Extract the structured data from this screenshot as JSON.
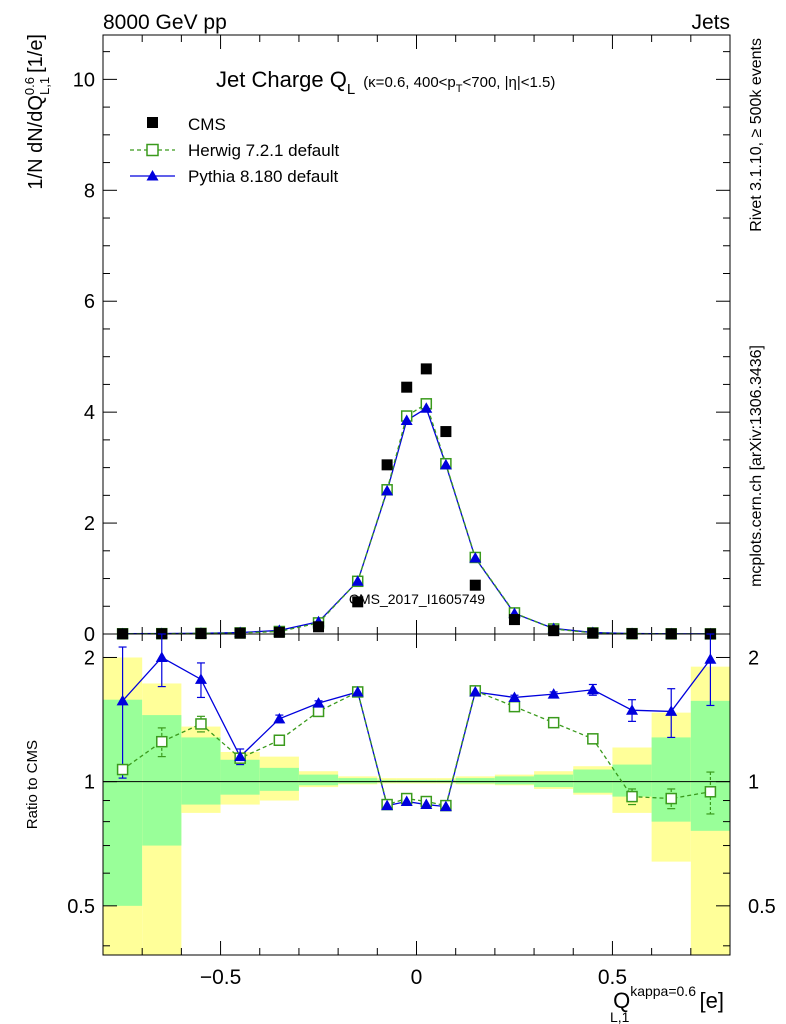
{
  "header": {
    "left": "8000 GeV pp",
    "right": "Jets"
  },
  "side_text": {
    "rivet": "Rivet 3.1.10, ≥ 500k events",
    "mcplots": "mcplots.cern.ch [arXiv:1306.3436]"
  },
  "watermark": "CMS_2017_I1605749",
  "title": {
    "main": "Jet Charge Q",
    "main_sub": "L",
    "cond_a": "(κ=0.6, 400<p",
    "cond_sub": "T",
    "cond_b": "<700, |η|<1.5)"
  },
  "axes": {
    "ylabel_main": "1/N dN/dQ",
    "ylabel_main_sup": "0.6",
    "ylabel_main_sub": "L,1",
    "ylabel_main_unit": "[1/e]",
    "ylabel_ratio": "Ratio to CMS",
    "xlabel_base": "Q",
    "xlabel_sup": "kappa=0.6",
    "xlabel_sub": "L,1",
    "xlabel_unit": "[e]"
  },
  "legend": {
    "items": [
      {
        "label": "CMS"
      },
      {
        "label": "Herwig 7.2.1 default"
      },
      {
        "label": "Pythia 8.180 default"
      }
    ]
  },
  "colors": {
    "cms": "#000000",
    "herwig": "#3a9a1c",
    "pythia": "#0000dd",
    "band_inner": "#99ff99",
    "band_outer": "#ffff99"
  },
  "chart_data": [
    {
      "type": "scatter",
      "panel": "main",
      "xlim": [
        -0.8,
        0.8
      ],
      "ylim": [
        0,
        10.8
      ],
      "yticks": [
        0,
        2,
        4,
        6,
        8,
        10
      ],
      "ytick_labels": [
        "0",
        "2",
        "4",
        "6",
        "8",
        "10"
      ],
      "x": [
        -0.75,
        -0.65,
        -0.55,
        -0.45,
        -0.35,
        -0.25,
        -0.15,
        -0.075,
        -0.025,
        0.025,
        0.075,
        0.15,
        0.25,
        0.35,
        0.45,
        0.55,
        0.65,
        0.75
      ],
      "series": [
        {
          "name": "CMS",
          "values": [
            0.003,
            0.005,
            0.008,
            0.015,
            0.03,
            0.13,
            0.58,
            3.05,
            4.45,
            4.78,
            3.65,
            0.88,
            0.26,
            0.06,
            0.015,
            0.006,
            0.003,
            0.002
          ]
        },
        {
          "name": "Herwig 7.2.1 default",
          "values": [
            0.004,
            0.006,
            0.011,
            0.02,
            0.045,
            0.2,
            0.95,
            2.6,
            3.93,
            4.15,
            3.07,
            1.38,
            0.38,
            0.09,
            0.02,
            0.006,
            0.003,
            0.002
          ]
        },
        {
          "name": "Pythia 8.180 default",
          "values": [
            0.005,
            0.009,
            0.014,
            0.026,
            0.065,
            0.22,
            0.95,
            2.58,
            3.85,
            4.07,
            3.05,
            1.37,
            0.37,
            0.1,
            0.026,
            0.009,
            0.005,
            0.004
          ]
        }
      ]
    },
    {
      "type": "line",
      "panel": "ratio",
      "xlim": [
        -0.8,
        0.8
      ],
      "ylim": [
        0.38,
        2.28
      ],
      "yticks": [
        0.5,
        1,
        2
      ],
      "ytick_labels": [
        "0.5",
        "1",
        "2"
      ],
      "xticks": [
        -0.5,
        0,
        0.5
      ],
      "xtick_labels": [
        "−0.5",
        "0",
        "0.5"
      ],
      "x": [
        -0.75,
        -0.65,
        -0.55,
        -0.45,
        -0.35,
        -0.25,
        -0.15,
        -0.075,
        -0.025,
        0.025,
        0.075,
        0.15,
        0.25,
        0.35,
        0.45,
        0.55,
        0.65,
        0.75
      ],
      "bin_edges": [
        -0.8,
        -0.7,
        -0.6,
        -0.5,
        -0.4,
        -0.3,
        -0.2,
        -0.1,
        -0.05,
        0,
        0.05,
        0.1,
        0.2,
        0.3,
        0.4,
        0.5,
        0.6,
        0.7,
        0.8
      ],
      "bands": {
        "inner_low": [
          0.5,
          0.7,
          0.88,
          0.93,
          0.95,
          0.98,
          0.99,
          0.995,
          0.995,
          0.995,
          0.995,
          0.99,
          0.985,
          0.97,
          0.94,
          0.92,
          0.8,
          0.76
        ],
        "inner_high": [
          1.58,
          1.45,
          1.28,
          1.13,
          1.08,
          1.04,
          1.02,
          1.01,
          1.01,
          1.01,
          1.01,
          1.02,
          1.03,
          1.04,
          1.07,
          1.1,
          1.28,
          1.57
        ],
        "outer_low": [
          0.38,
          0.38,
          0.84,
          0.88,
          0.9,
          0.97,
          0.985,
          0.99,
          0.99,
          0.99,
          0.99,
          0.985,
          0.98,
          0.96,
          0.93,
          0.84,
          0.64,
          0.38
        ],
        "outer_high": [
          2.0,
          1.73,
          1.36,
          1.18,
          1.15,
          1.06,
          1.03,
          1.02,
          1.02,
          1.02,
          1.02,
          1.03,
          1.04,
          1.06,
          1.09,
          1.21,
          1.47,
          1.9
        ]
      },
      "series": [
        {
          "name": "Herwig 7.2.1 default",
          "values": [
            1.07,
            1.25,
            1.38,
            1.14,
            1.26,
            1.48,
            1.65,
            0.88,
            0.91,
            0.895,
            0.875,
            1.66,
            1.52,
            1.39,
            1.27,
            0.92,
            0.91,
            0.945
          ],
          "err": [
            0.0,
            0.1,
            0.06,
            0.03,
            0.02,
            0.02,
            0.02,
            0.005,
            0.005,
            0.005,
            0.005,
            0.02,
            0.02,
            0.02,
            0.03,
            0.04,
            0.05,
            0.11
          ]
        },
        {
          "name": "Pythia 8.180 default",
          "values": [
            1.57,
            2.0,
            1.77,
            1.15,
            1.42,
            1.55,
            1.65,
            0.875,
            0.895,
            0.88,
            0.87,
            1.65,
            1.6,
            1.63,
            1.67,
            1.49,
            1.48,
            1.98
          ],
          "err": [
            0.55,
            0.3,
            0.17,
            0.05,
            0.03,
            0.02,
            0.02,
            0.005,
            0.005,
            0.005,
            0.005,
            0.02,
            0.02,
            0.02,
            0.05,
            0.09,
            0.2,
            0.45
          ]
        }
      ]
    }
  ]
}
